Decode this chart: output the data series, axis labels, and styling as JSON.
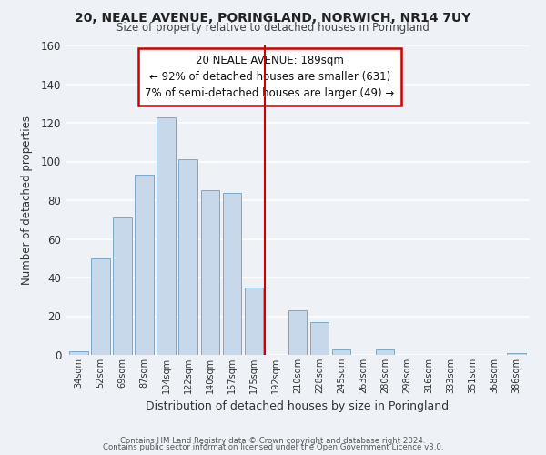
{
  "title": "20, NEALE AVENUE, PORINGLAND, NORWICH, NR14 7UY",
  "subtitle": "Size of property relative to detached houses in Poringland",
  "xlabel": "Distribution of detached houses by size in Poringland",
  "ylabel": "Number of detached properties",
  "bar_labels": [
    "34sqm",
    "52sqm",
    "69sqm",
    "87sqm",
    "104sqm",
    "122sqm",
    "140sqm",
    "157sqm",
    "175sqm",
    "192sqm",
    "210sqm",
    "228sqm",
    "245sqm",
    "263sqm",
    "280sqm",
    "298sqm",
    "316sqm",
    "333sqm",
    "351sqm",
    "368sqm",
    "386sqm"
  ],
  "bar_values": [
    2,
    50,
    71,
    93,
    123,
    101,
    85,
    84,
    35,
    0,
    23,
    17,
    3,
    0,
    3,
    0,
    0,
    0,
    0,
    0,
    1
  ],
  "bar_color": "#c8d8eb",
  "bar_edge_color": "#7aaac8",
  "reference_line_x_label": "192sqm",
  "reference_line_color": "#cc0000",
  "annotation_title": "20 NEALE AVENUE: 189sqm",
  "annotation_line1": "← 92% of detached houses are smaller (631)",
  "annotation_line2": "7% of semi-detached houses are larger (49) →",
  "annotation_box_edge_color": "#cc0000",
  "ylim": [
    0,
    160
  ],
  "yticks": [
    0,
    20,
    40,
    60,
    80,
    100,
    120,
    140,
    160
  ],
  "footer1": "Contains HM Land Registry data © Crown copyright and database right 2024.",
  "footer2": "Contains public sector information licensed under the Open Government Licence v3.0.",
  "bg_color": "#eef2f7",
  "grid_color": "#ffffff"
}
